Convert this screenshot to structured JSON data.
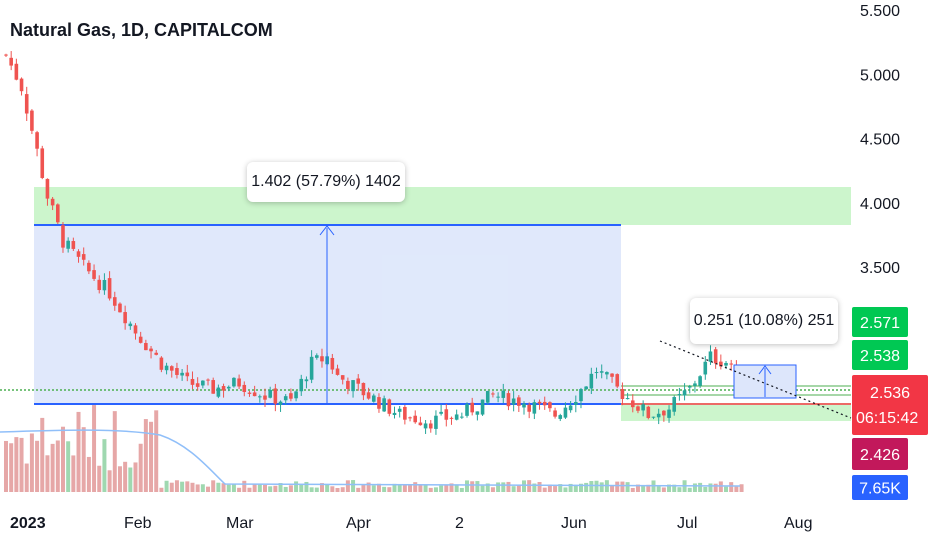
{
  "header": {
    "title": "Natural Gas, 1D, CAPITALCOM"
  },
  "colors": {
    "up": "#26a69a",
    "down": "#ef5350",
    "upVol": "#9fd8b0",
    "downVol": "#e6a7a7",
    "zoneGreen": "#ccf5cc",
    "zoneBlue": "#dde6fb",
    "lineBlue": "#2962ff",
    "lineRed": "#e53935",
    "lineGreen": "#4caf50",
    "badgeGreen": "#00c853",
    "badgeRed": "#f23645",
    "badgeMaroon": "#c2185b",
    "badgeBlue": "#2962ff"
  },
  "price_axis": {
    "ticks": [
      "5.500",
      "5.000",
      "4.500",
      "4.000",
      "3.500"
    ]
  },
  "time_axis": {
    "labels": [
      "2023",
      "Feb",
      "Mar",
      "Apr",
      "2",
      "Jun",
      "Jul",
      "Aug"
    ]
  },
  "badges": {
    "upper_green": "2.571",
    "lower_green": "2.538",
    "last_price": "2.536",
    "countdown": "06:15:42",
    "maroon": "2.426",
    "volume": "7.65K"
  },
  "annotations": {
    "big_measure": "1.402 (57.79%) 1402",
    "small_measure": "0.251 (10.08%) 251"
  },
  "chart_data": {
    "type": "candlestick",
    "title": "Natural Gas, 1D, CAPITALCOM",
    "x_start": "2023-01-02",
    "x_end": "2023-07-20",
    "close_start": 5.1,
    "close_end": 2.536,
    "lowest_close": 2.15,
    "highest_close": 5.2,
    "last_price": 2.536,
    "grid": false
  }
}
